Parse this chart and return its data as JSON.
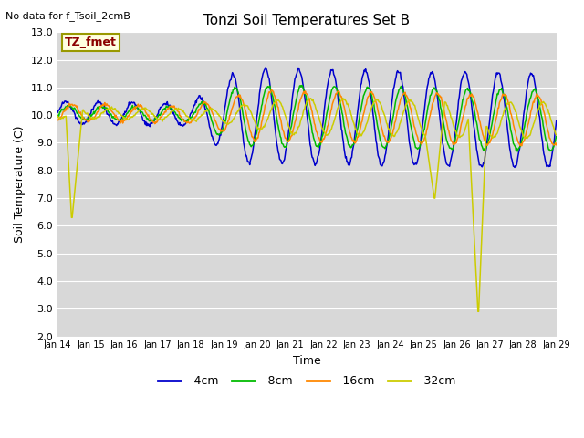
{
  "title": "Tonzi Soil Temperatures Set B",
  "no_data_text": "No data for f_Tsoil_2cmB",
  "legend_box_text": "TZ_fmet",
  "xlabel": "Time",
  "ylabel": "Soil Temperature (C)",
  "ylim": [
    2.0,
    13.0
  ],
  "yticks": [
    2.0,
    3.0,
    4.0,
    5.0,
    6.0,
    7.0,
    8.0,
    9.0,
    10.0,
    11.0,
    12.0,
    13.0
  ],
  "xtick_labels": [
    "Jan 14",
    "Jan 15",
    "Jan 16",
    "Jan 17",
    "Jan 18",
    "Jan 19",
    "Jan 20",
    "Jan 21",
    "Jan 22",
    "Jan 23",
    "Jan 24",
    "Jan 25",
    "Jan 26",
    "Jan 27",
    "Jan 28",
    "Jan 29"
  ],
  "colors": {
    "4cm": "#0000cc",
    "8cm": "#00bb00",
    "16cm": "#ff8800",
    "32cm": "#cccc00"
  },
  "legend_entries": [
    "-4cm",
    "-8cm",
    "-16cm",
    "-32cm"
  ],
  "plot_bg_color": "#d8d8d8",
  "grid_color": "#ffffff",
  "n_days": 15,
  "pts_per_day": 48
}
